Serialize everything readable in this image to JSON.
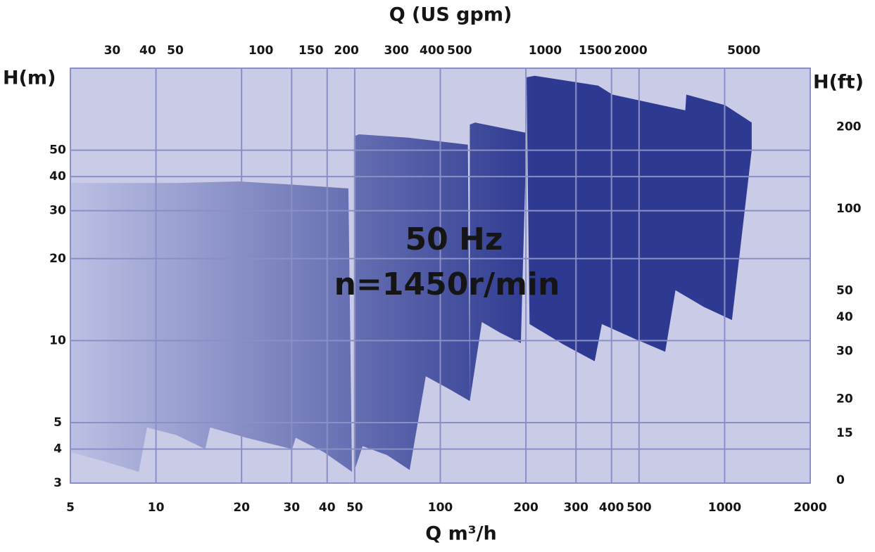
{
  "chart_data": {
    "type": "area",
    "x2_label": "Q (US gpm)",
    "x_label": "Q m³/h",
    "y_label": "H(m)",
    "y2_label": "H(ft)",
    "annotations": [
      "50 Hz",
      "n=1450r/min"
    ],
    "log_x": true,
    "log_y": true,
    "grid": true,
    "background": "#c9cbe7",
    "grid_color": "#8a8fc6",
    "gradient": [
      "#bcc0e4",
      "#2e3a91"
    ],
    "xlim": [
      5,
      2000
    ],
    "xticks": [
      5,
      10,
      20,
      30,
      40,
      50,
      100,
      200,
      300,
      400,
      500,
      1000,
      2000
    ],
    "ylim": [
      3,
      100
    ],
    "yticks": [
      3,
      4,
      5,
      10,
      20,
      30,
      40,
      50
    ],
    "x2lim": [
      22.0,
      8806
    ],
    "x2ticks": [
      30,
      40,
      50,
      100,
      150,
      200,
      300,
      400,
      500,
      1000,
      1500,
      2000,
      5000
    ],
    "y2lim": [
      9.84,
      328.1
    ],
    "y2ticks": [
      {
        "value": 10,
        "label": "0"
      },
      15,
      20,
      30,
      40,
      50,
      100,
      200
    ],
    "series": [
      {
        "x": [
          5,
          11.8,
          19.6,
          31,
          47.5,
          48.9,
          38.9,
          31,
          30.1,
          20.8,
          15.5,
          14.9,
          11.8,
          9.3,
          8.7,
          6.6,
          5
        ],
        "y": [
          37.9,
          37.9,
          38.4,
          37.3,
          36.2,
          3.3,
          3.9,
          4.4,
          4.0,
          4.4,
          4.8,
          4.0,
          4.5,
          4.8,
          3.3,
          3.6,
          3.9
        ]
      },
      {
        "x": [
          49.7,
          51.7,
          77,
          125,
          127,
          108.6,
          88.9,
          78,
          65,
          53.3,
          49.7
        ],
        "y": [
          56.2,
          57.2,
          55.6,
          52.4,
          6.0,
          6.6,
          7.4,
          3.35,
          3.8,
          4.1,
          3.3
        ]
      },
      {
        "x": [
          127,
          132.5,
          201,
          192,
          162,
          140,
          127
        ],
        "y": [
          62.1,
          63.2,
          57.9,
          9.8,
          10.7,
          11.7,
          6.0
        ]
      },
      {
        "x": [
          201,
          215,
          359,
          403,
          733,
          672,
          618,
          478,
          370,
          349,
          270,
          206
        ],
        "y": [
          92.6,
          93.8,
          86.3,
          80.0,
          69.9,
          15.4,
          9.1,
          10.2,
          11.5,
          8.4,
          9.7,
          11.5
        ]
      },
      {
        "x": [
          733,
          1003,
          1245,
          1245,
          1061,
          845,
          665
        ],
        "y": [
          80.0,
          73.2,
          63.2,
          50.0,
          11.9,
          13.3,
          15.4
        ]
      }
    ]
  }
}
